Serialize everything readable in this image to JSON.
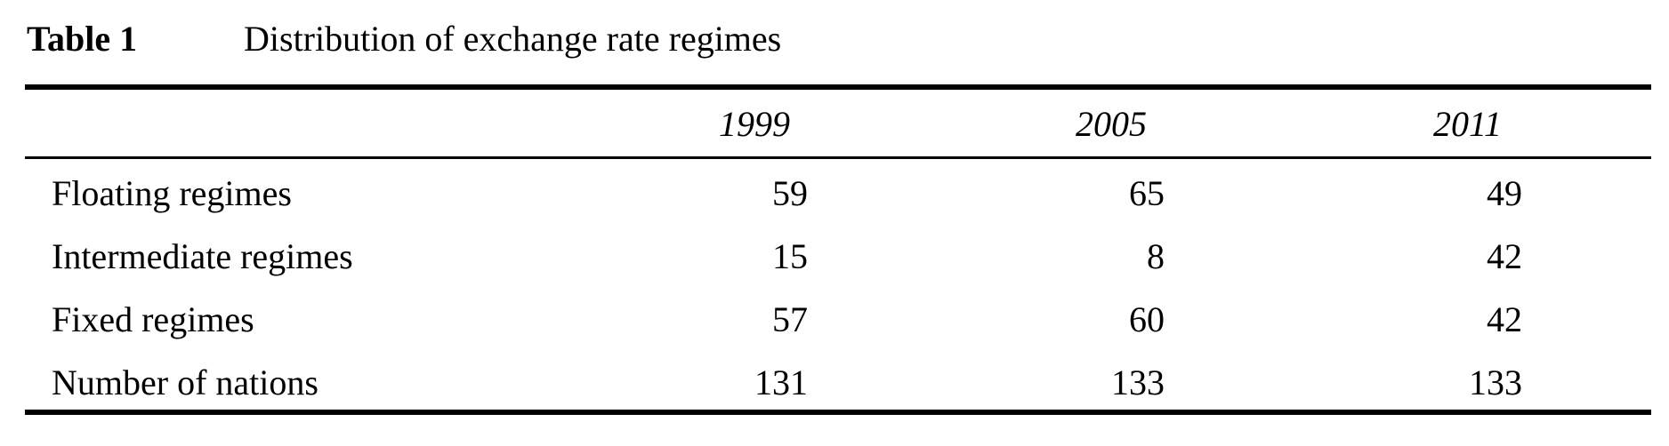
{
  "table": {
    "label": "Table 1",
    "title": "Distribution of exchange rate regimes",
    "columns": [
      "1999",
      "2005",
      "2011"
    ],
    "rows": [
      {
        "label": "Floating regimes",
        "values": [
          "59",
          "65",
          "49"
        ]
      },
      {
        "label": "Intermediate regimes",
        "values": [
          "15",
          "8",
          "42"
        ]
      },
      {
        "label": "Fixed regimes",
        "values": [
          "57",
          "60",
          "42"
        ]
      },
      {
        "label": "Number of nations",
        "values": [
          "131",
          "133",
          "133"
        ]
      }
    ]
  }
}
